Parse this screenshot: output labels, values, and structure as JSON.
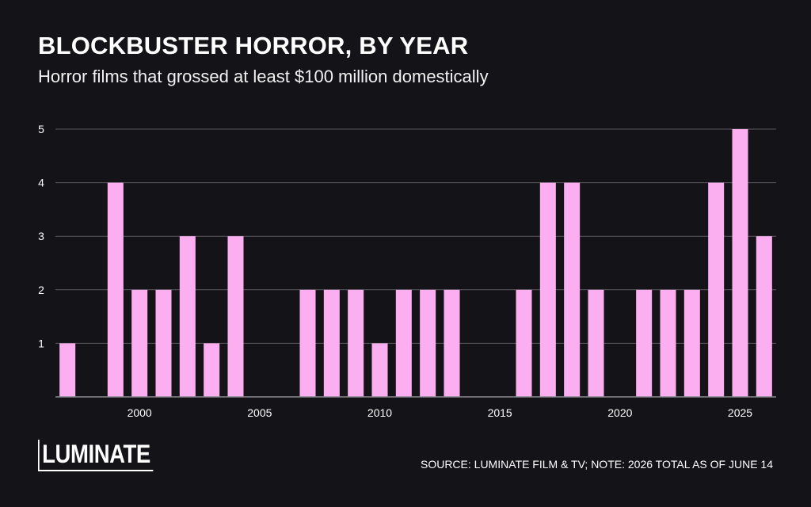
{
  "header": {
    "title": "BLOCKBUSTER HORROR, BY YEAR",
    "subtitle": "Horror films that grossed at least $100 million domestically"
  },
  "footer": {
    "logo": "LUMINATE",
    "source": "SOURCE: LUMINATE FILM & TV; NOTE: 2026 TOTAL AS OF JUNE 14"
  },
  "colors": {
    "background": "#141317",
    "bar": "#fbaef0",
    "grid": "#5a5a60",
    "text": "#ffffff"
  },
  "chart_data": {
    "type": "bar",
    "title": "BLOCKBUSTER HORROR, BY YEAR",
    "subtitle": "Horror films that grossed at least $100 million domestically",
    "xlabel": "",
    "ylabel": "",
    "grid": true,
    "ylim": [
      0,
      5
    ],
    "yticks": [
      1,
      2,
      3,
      4,
      5
    ],
    "xticks": [
      2000,
      2005,
      2010,
      2015,
      2020,
      2025
    ],
    "x": [
      1997,
      1998,
      1999,
      2000,
      2001,
      2002,
      2003,
      2004,
      2005,
      2006,
      2007,
      2008,
      2009,
      2010,
      2011,
      2012,
      2013,
      2014,
      2015,
      2016,
      2017,
      2018,
      2019,
      2020,
      2021,
      2022,
      2023,
      2024,
      2025,
      2026
    ],
    "values": [
      1,
      0,
      4,
      2,
      2,
      3,
      1,
      3,
      0,
      0,
      2,
      2,
      2,
      1,
      2,
      2,
      2,
      0,
      0,
      2,
      4,
      4,
      2,
      0,
      2,
      2,
      2,
      4,
      5,
      3
    ]
  }
}
